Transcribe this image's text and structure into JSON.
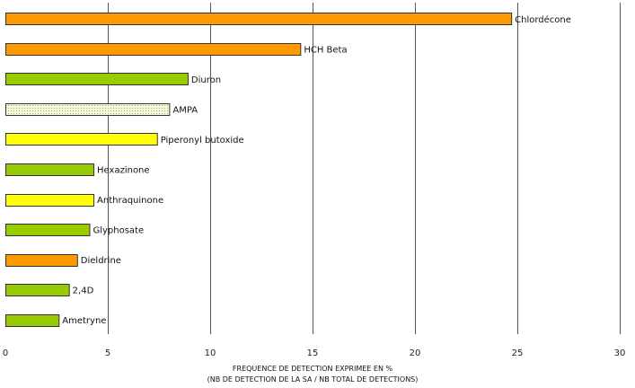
{
  "chart_data": {
    "type": "bar",
    "orientation": "horizontal",
    "categories": [
      "Chlordécone",
      "HCH Beta",
      "Diuron",
      "AMPA",
      "Piperonyl butoxide",
      "Hexazinone",
      "Anthraquinone",
      "Glyphosate",
      "Dieldrine",
      "2,4D",
      "Ametryne"
    ],
    "values": [
      24.7,
      14.4,
      8.9,
      8.0,
      7.4,
      4.3,
      4.3,
      4.1,
      3.5,
      3.1,
      2.6
    ],
    "bar_colors": [
      "#ff9900",
      "#ff9900",
      "#99cc00",
      "#e8f0c8",
      "#ffff00",
      "#99cc00",
      "#ffff00",
      "#99cc00",
      "#ff9900",
      "#99cc00",
      "#99cc00"
    ],
    "bar_patterns": [
      "solid",
      "solid",
      "solid",
      "dotted",
      "solid",
      "solid",
      "solid",
      "solid",
      "solid",
      "solid",
      "solid"
    ],
    "xlim": [
      0,
      30
    ],
    "xticks": [
      0,
      5,
      10,
      15,
      20,
      25,
      30
    ],
    "xtick_labels": [
      "0",
      "5",
      "10",
      "15",
      "20",
      "25",
      "30"
    ],
    "xlabel_line1": "FREQUENCE DE DETECTION EXPRIMEE EN %",
    "xlabel_line2": "(NB DE DETECTION DE LA SA / NB TOTAL DE DETECTIONS)",
    "grid": "vertical",
    "legend": "none"
  }
}
